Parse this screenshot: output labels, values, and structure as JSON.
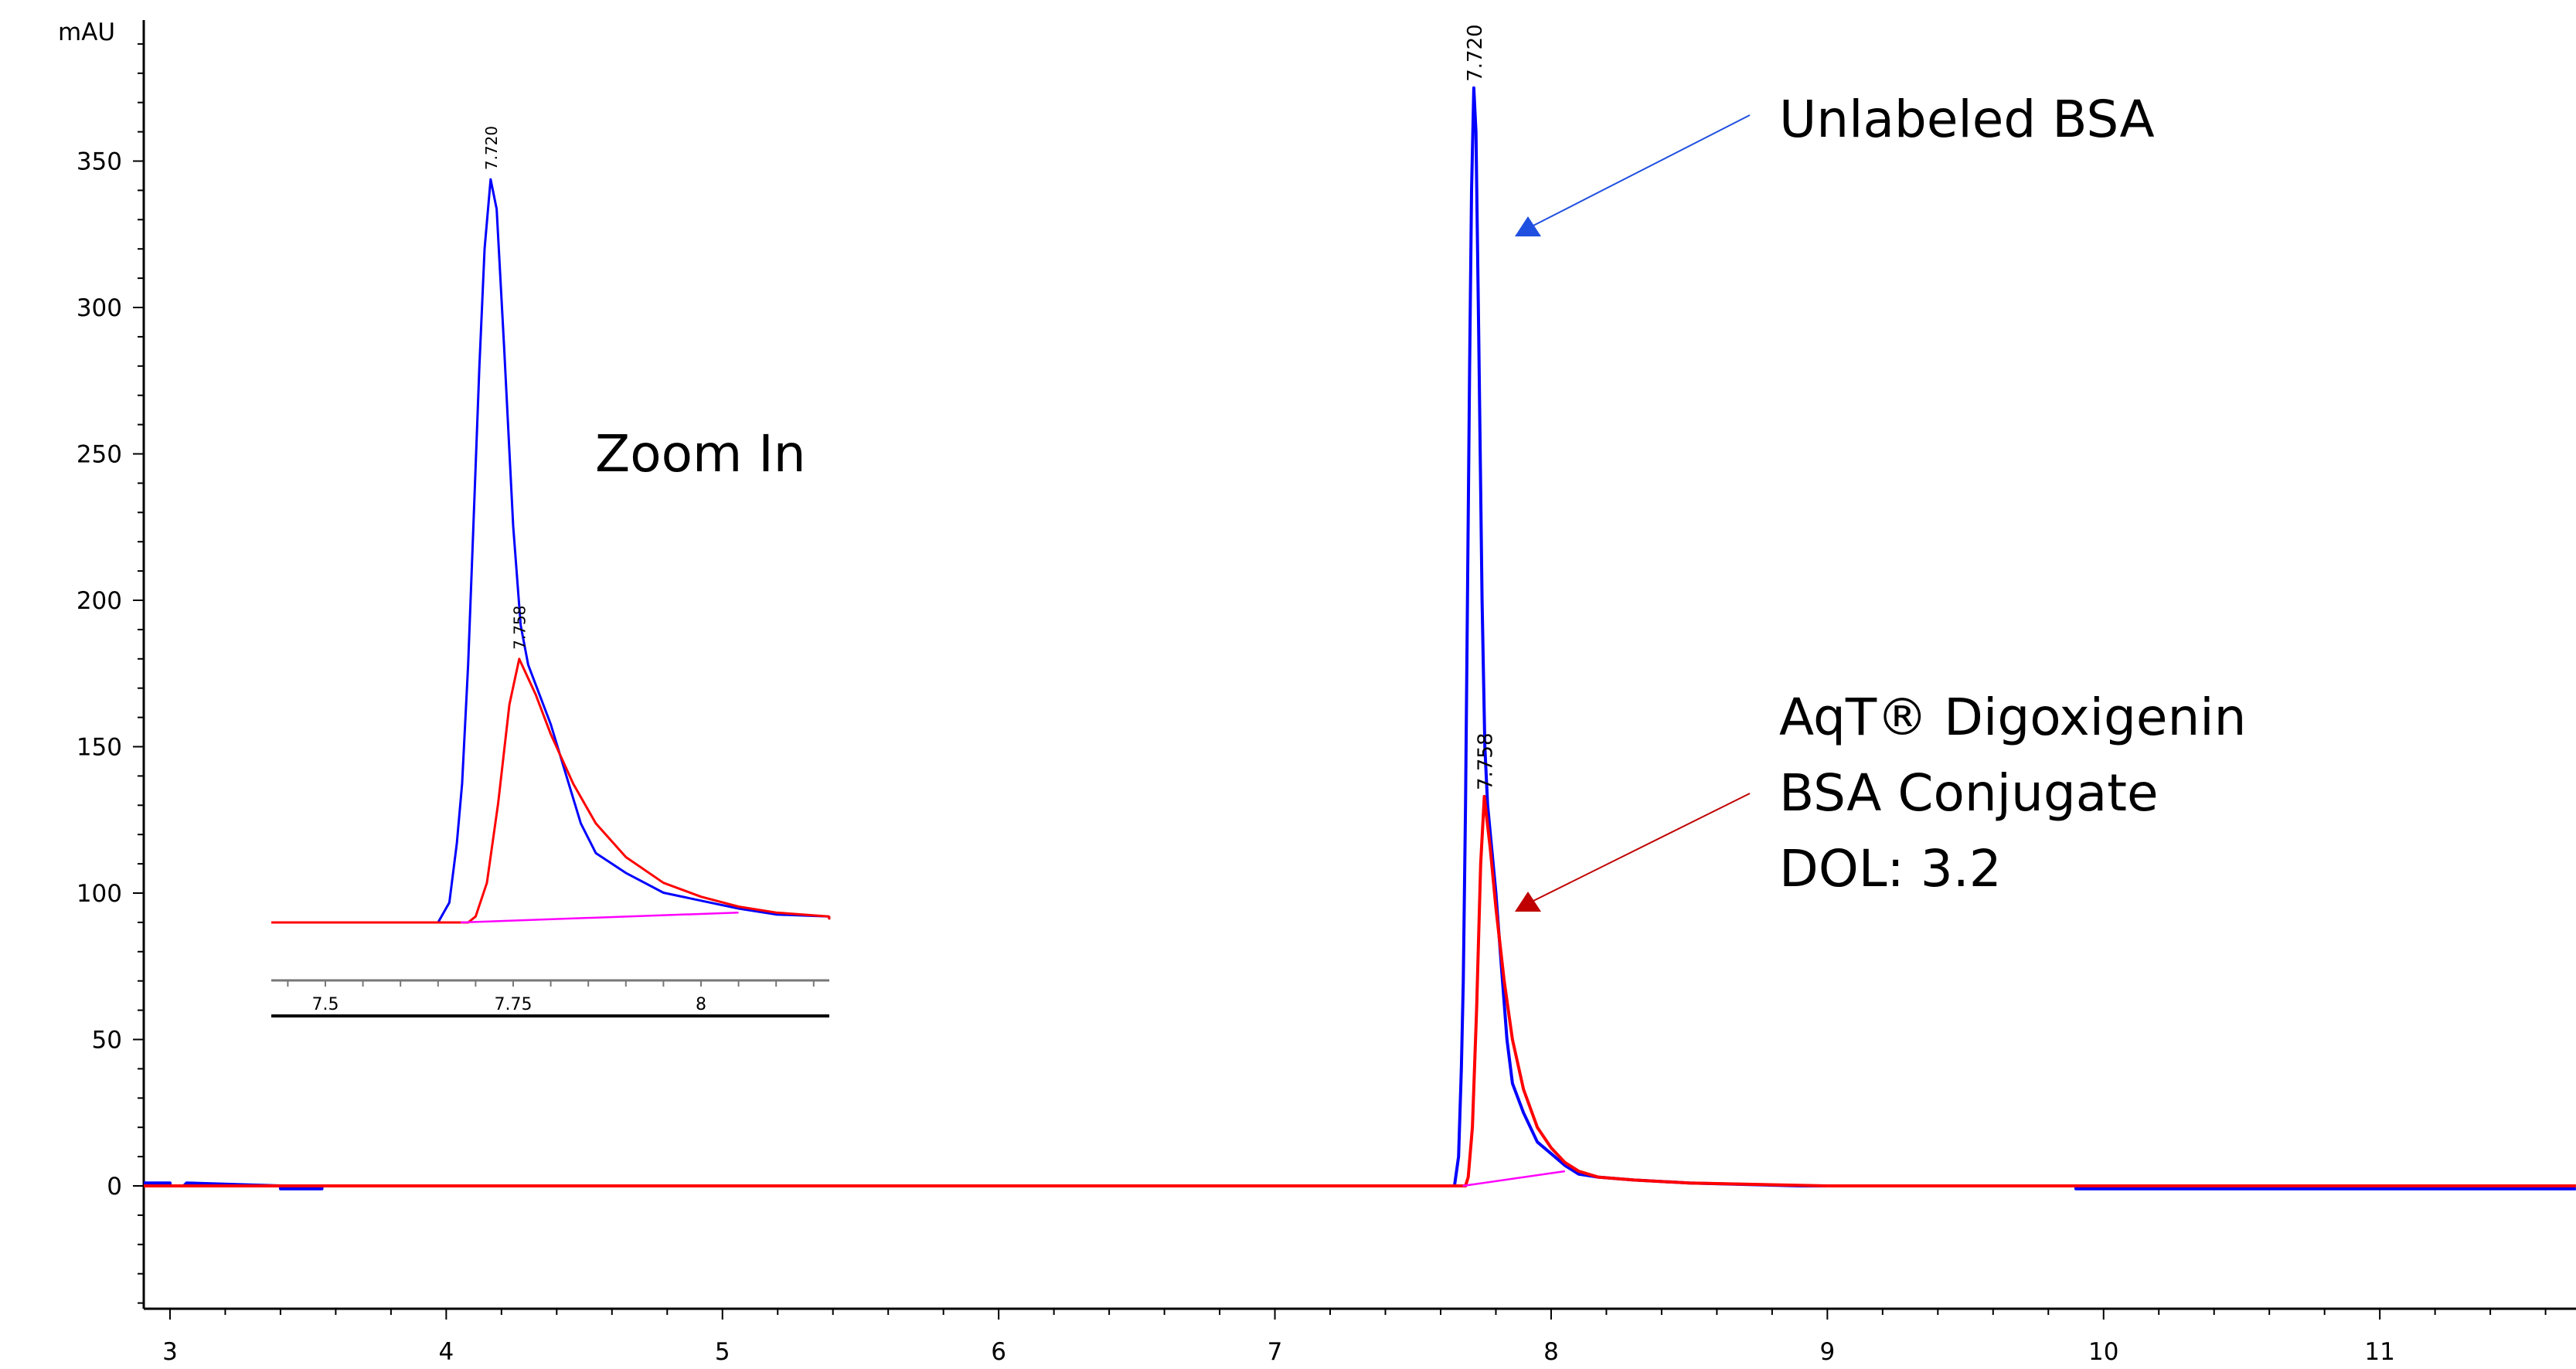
{
  "chart_data": {
    "type": "line",
    "ylabel": "mAU",
    "xlim": [
      2.905,
      11.71
    ],
    "ylim": [
      -42,
      398
    ],
    "x_ticks": [
      3,
      4,
      5,
      6,
      7,
      8,
      9,
      10,
      11
    ],
    "y_ticks": [
      0,
      50,
      100,
      150,
      200,
      250,
      300,
      350
    ],
    "grid": false,
    "series": [
      {
        "color": "#0000ff",
        "x": [
          2.905,
          3.0,
          3.0,
          3.05,
          3.06,
          3.4,
          3.4,
          3.55,
          3.55,
          7.6,
          7.65,
          7.665,
          7.675,
          7.682,
          7.69,
          7.697,
          7.705,
          7.712,
          7.72,
          7.728,
          7.738,
          7.75,
          7.76,
          7.77,
          7.8,
          7.82,
          7.84,
          7.86,
          7.9,
          7.95,
          8.0,
          8.05,
          8.1,
          8.17,
          8.3,
          8.5,
          8.9,
          9.9,
          9.9,
          11.71
        ],
        "y": [
          1,
          1,
          0,
          0,
          1,
          0,
          -1,
          -1,
          0,
          0,
          0,
          10,
          40,
          70,
          130,
          200,
          280,
          340,
          375,
          360,
          290,
          200,
          150,
          130,
          100,
          75,
          50,
          35,
          25,
          15,
          11,
          7,
          4,
          3,
          2,
          1,
          0,
          0,
          -1,
          -1
        ]
      },
      {
        "color": "#ff0000",
        "x": [
          2.905,
          7.69,
          7.7,
          7.715,
          7.73,
          7.745,
          7.758,
          7.78,
          7.8,
          7.83,
          7.86,
          7.9,
          7.95,
          8.0,
          8.05,
          8.1,
          8.17,
          8.3,
          8.5,
          9.0,
          11.71
        ],
        "y": [
          0,
          0,
          3,
          20,
          60,
          110,
          133,
          115,
          95,
          70,
          50,
          33,
          20,
          13,
          8,
          5,
          3,
          2,
          1,
          0,
          0
        ]
      },
      {
        "color": "#ff00ff",
        "x": [
          7.68,
          8.05
        ],
        "y": [
          0,
          5
        ]
      }
    ],
    "peak_labels": [
      {
        "text": "7.720",
        "x": 7.72,
        "y": 375,
        "color": "#0000ff"
      },
      {
        "text": "7.758",
        "x": 7.758,
        "y": 133,
        "color": "#ff0000"
      }
    ],
    "inset": {
      "title": "Zoom In",
      "xlim": [
        7.428,
        8.171
      ],
      "x_ticks": [
        7.5,
        7.75,
        8
      ],
      "x_tick_labels": [
        "7.5",
        "7.75",
        "8"
      ]
    },
    "annotations": [
      {
        "lines": [
          "Unlabeled BSA"
        ],
        "color": "#2050e0"
      },
      {
        "lines": [
          "AqT® Digoxigenin",
          "BSA Conjugate",
          "DOL: 3.2"
        ],
        "color": "#c00000"
      }
    ]
  }
}
